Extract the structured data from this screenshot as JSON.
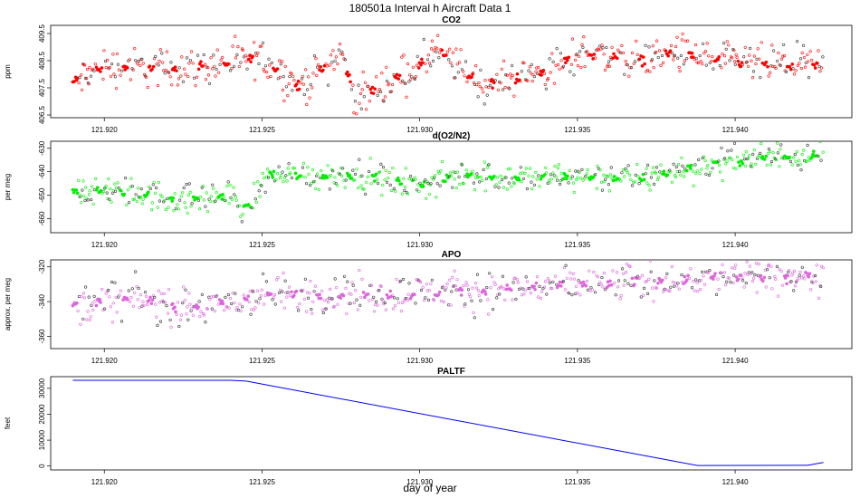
{
  "figure": {
    "title": "180501a   Interval h Aircraft Data 1",
    "xlabel": "day of year"
  },
  "chart_data": [
    {
      "type": "scatter",
      "title": "CO2",
      "ylabel": "ppm",
      "xlim": [
        121.9183,
        121.9437
      ],
      "ylim": [
        406.4,
        409.8
      ],
      "y_reversed": true,
      "xticks": [
        121.92,
        121.925,
        121.93,
        121.935,
        121.94
      ],
      "xtick_labels": [
        "121.920",
        "121.925",
        "121.930",
        "121.935",
        "121.940"
      ],
      "yticks": [
        409.5,
        408.5,
        407.5,
        406.5
      ],
      "ytick_labels": [
        "409.5",
        "408.5",
        "407.5",
        "406.5"
      ],
      "color": "#ff0000",
      "series": [
        {
          "name": "CO2",
          "x_start": 121.919,
          "x_end": 121.9428,
          "trend": [
            [
              121.919,
              407.7
            ],
            [
              121.92,
              408.3
            ],
            [
              121.922,
              408.2
            ],
            [
              121.924,
              408.4
            ],
            [
              121.925,
              408.6
            ],
            [
              121.9262,
              407.5
            ],
            [
              121.9275,
              408.8
            ],
            [
              121.928,
              407.0
            ],
            [
              121.9285,
              407.4
            ],
            [
              121.93,
              408.3
            ],
            [
              121.9305,
              408.9
            ],
            [
              121.932,
              407.6
            ],
            [
              121.934,
              408.1
            ],
            [
              121.9352,
              408.8
            ],
            [
              121.937,
              408.5
            ],
            [
              121.938,
              408.8
            ],
            [
              121.94,
              408.4
            ],
            [
              121.9428,
              408.3
            ]
          ],
          "noise": 0.35
        }
      ]
    },
    {
      "type": "scatter",
      "title": "d(O2/N2)",
      "ylabel": "per meg",
      "xlim": [
        121.9183,
        121.9437
      ],
      "ylim": [
        -666,
        -627
      ],
      "xticks": [
        121.92,
        121.925,
        121.93,
        121.935,
        121.94
      ],
      "xtick_labels": [
        "121.920",
        "121.925",
        "121.930",
        "121.935",
        "121.940"
      ],
      "yticks": [
        -630,
        -640,
        -650,
        -660
      ],
      "ytick_labels": [
        "-630",
        "-640",
        "-650",
        "-660"
      ],
      "color": "#00ee00",
      "series": [
        {
          "name": "d(O2/N2)",
          "x_start": 121.919,
          "x_end": 121.9428,
          "trend": [
            [
              121.919,
              -648
            ],
            [
              121.921,
              -649
            ],
            [
              121.9225,
              -652
            ],
            [
              121.924,
              -650
            ],
            [
              121.9245,
              -656
            ],
            [
              121.9252,
              -641
            ],
            [
              121.927,
              -642
            ],
            [
              121.928,
              -641
            ],
            [
              121.93,
              -646
            ],
            [
              121.9315,
              -641
            ],
            [
              121.933,
              -643
            ],
            [
              121.935,
              -642
            ],
            [
              121.937,
              -643
            ],
            [
              121.939,
              -637
            ],
            [
              121.941,
              -634
            ],
            [
              121.9428,
              -632
            ]
          ],
          "noise": 3.2
        }
      ]
    },
    {
      "type": "scatter",
      "title": "APO",
      "ylabel": "approx. per meg",
      "xlim": [
        121.9183,
        121.9437
      ],
      "ylim": [
        -367,
        -316
      ],
      "xticks": [
        121.92,
        121.925,
        121.93,
        121.935,
        121.94
      ],
      "xtick_labels": [
        "121.920",
        "121.925",
        "121.930",
        "121.935",
        "121.940"
      ],
      "yticks": [
        -320,
        -340,
        -360
      ],
      "ytick_labels": [
        "-320",
        "-340",
        "-360"
      ],
      "color": "#dd66dd",
      "series": [
        {
          "name": "APO",
          "x_start": 121.919,
          "x_end": 121.9428,
          "trend": [
            [
              121.919,
              -342
            ],
            [
              121.921,
              -338
            ],
            [
              121.9225,
              -344
            ],
            [
              121.924,
              -341
            ],
            [
              121.925,
              -336
            ],
            [
              121.927,
              -336
            ],
            [
              121.929,
              -336
            ],
            [
              121.93,
              -335
            ],
            [
              121.932,
              -334
            ],
            [
              121.934,
              -331
            ],
            [
              121.936,
              -330
            ],
            [
              121.938,
              -327
            ],
            [
              121.94,
              -326
            ],
            [
              121.942,
              -326
            ],
            [
              121.9428,
              -324
            ]
          ],
          "noise": 5.5
        }
      ]
    },
    {
      "type": "line",
      "title": "PALTF",
      "ylabel": "feet",
      "xlim": [
        121.9183,
        121.9437
      ],
      "ylim": [
        -1500,
        34500
      ],
      "xticks": [
        121.92,
        121.925,
        121.93,
        121.935,
        121.94
      ],
      "xtick_labels": [
        "121.920",
        "121.925",
        "121.930",
        "121.935",
        "121.940"
      ],
      "yticks": [
        0,
        10000,
        20000,
        30000
      ],
      "ytick_labels": [
        "0",
        "10000",
        "20000",
        "30000"
      ],
      "color": "#0000ff",
      "series": [
        {
          "name": "PALTF",
          "x": [
            121.919,
            121.924,
            121.9245,
            121.9388,
            121.9423,
            121.9428
          ],
          "y": [
            33100,
            33100,
            32800,
            200,
            300,
            1400
          ]
        }
      ]
    }
  ]
}
